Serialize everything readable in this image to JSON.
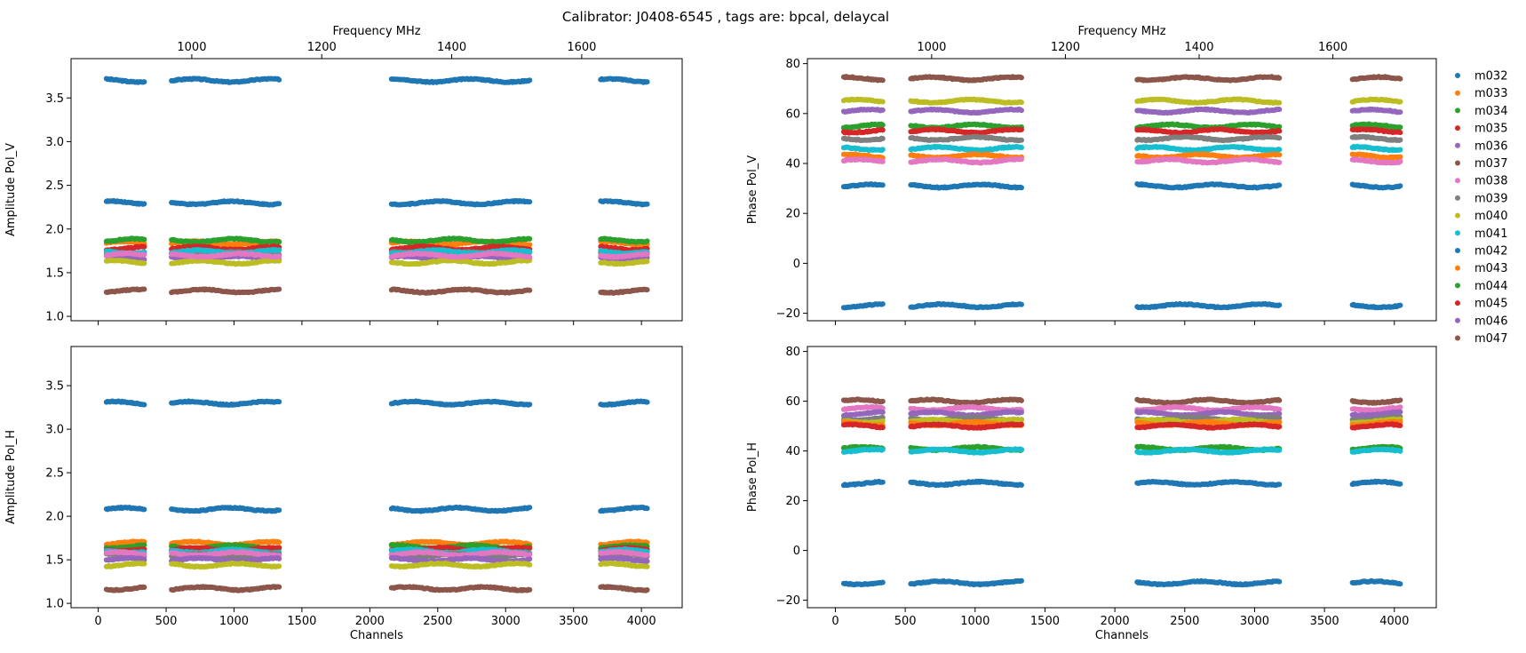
{
  "chart_data": {
    "title": "Calibrator: J0408-6545 , tags are: bpcal, delaycal",
    "type": "scatter",
    "x_label": "Channels",
    "top_axis_label": "Frequency MHz",
    "x_ticks": [
      0,
      500,
      1000,
      1500,
      2000,
      2500,
      3000,
      3500,
      4000
    ],
    "freq_ticks": [
      1000,
      1200,
      1400,
      1600
    ],
    "freq_mapping_mhz": {
      "channel_0": 856.0,
      "channel_4096": 1712.0
    },
    "xlim": [
      -200,
      4300
    ],
    "channel_segments": [
      [
        60,
        340
      ],
      [
        540,
        1340
      ],
      [
        2160,
        3180
      ],
      [
        3700,
        4050
      ]
    ],
    "legend": {
      "placement": "right-outside",
      "entries": [
        "m032",
        "m033",
        "m034",
        "m035",
        "m036",
        "m037",
        "m038",
        "m039",
        "m040",
        "m041",
        "m042",
        "m043",
        "m044",
        "m045",
        "m046",
        "m047"
      ]
    },
    "colors": [
      "#1f77b4",
      "#ff7f0e",
      "#2ca02c",
      "#d62728",
      "#9467bd",
      "#8c564b",
      "#e377c2",
      "#7f7f7f",
      "#bcbd22",
      "#17becf"
    ],
    "panels": [
      {
        "name": "amplitude-pol-v",
        "ylabel": "Amplitude Pol_V",
        "ylim": [
          0.95,
          3.95
        ],
        "yticks": [
          "1.0",
          "1.5",
          "2.0",
          "2.5",
          "3.0",
          "3.5"
        ],
        "x_tick_labels": false,
        "top_freq_axis": true,
        "series": [
          {
            "series_index": 0,
            "level": 3.7
          },
          {
            "series_index": 10,
            "level": 2.3
          },
          {
            "series_index": 1,
            "level": 1.84
          },
          {
            "series_index": 2,
            "level": 1.87
          },
          {
            "series_index": 3,
            "level": 1.78
          },
          {
            "series_index": 7,
            "level": 1.72
          },
          {
            "series_index": 9,
            "level": 1.74
          },
          {
            "series_index": 4,
            "level": 1.67
          },
          {
            "series_index": 8,
            "level": 1.62
          },
          {
            "series_index": 6,
            "level": 1.7
          },
          {
            "series_index": 5,
            "level": 1.29
          }
        ]
      },
      {
        "name": "phase-pol-v",
        "ylabel": "Phase Pol_V",
        "ylim": [
          -23,
          82
        ],
        "yticks": [
          "−20",
          "0",
          "20",
          "40",
          "60",
          "80"
        ],
        "x_tick_labels": false,
        "top_freq_axis": true,
        "series": [
          {
            "series_index": 5,
            "level": 74
          },
          {
            "series_index": 8,
            "level": 65
          },
          {
            "series_index": 4,
            "level": 61
          },
          {
            "series_index": 2,
            "level": 55
          },
          {
            "series_index": 3,
            "level": 53
          },
          {
            "series_index": 7,
            "level": 50
          },
          {
            "series_index": 9,
            "level": 46
          },
          {
            "series_index": 1,
            "level": 43
          },
          {
            "series_index": 6,
            "level": 41
          },
          {
            "series_index": 0,
            "level": 31
          },
          {
            "series_index": 10,
            "level": -17
          }
        ]
      },
      {
        "name": "amplitude-pol-h",
        "ylabel": "Amplitude Pol_H",
        "ylim": [
          0.95,
          3.95
        ],
        "yticks": [
          "1.0",
          "1.5",
          "2.0",
          "2.5",
          "3.0",
          "3.5"
        ],
        "x_tick_labels": true,
        "top_freq_axis": false,
        "series": [
          {
            "series_index": 0,
            "level": 3.3
          },
          {
            "series_index": 10,
            "level": 2.08
          },
          {
            "series_index": 1,
            "level": 1.69
          },
          {
            "series_index": 2,
            "level": 1.65
          },
          {
            "series_index": 3,
            "level": 1.62
          },
          {
            "series_index": 9,
            "level": 1.6
          },
          {
            "series_index": 7,
            "level": 1.55
          },
          {
            "series_index": 6,
            "level": 1.57
          },
          {
            "series_index": 4,
            "level": 1.5
          },
          {
            "series_index": 8,
            "level": 1.44
          },
          {
            "series_index": 5,
            "level": 1.17
          }
        ]
      },
      {
        "name": "phase-pol-h",
        "ylabel": "Phase Pol_H",
        "ylim": [
          -23,
          82
        ],
        "yticks": [
          "−20",
          "0",
          "20",
          "40",
          "60",
          "80"
        ],
        "x_tick_labels": true,
        "top_freq_axis": false,
        "series": [
          {
            "series_index": 5,
            "level": 60
          },
          {
            "series_index": 6,
            "level": 57
          },
          {
            "series_index": 4,
            "level": 55
          },
          {
            "series_index": 7,
            "level": 53
          },
          {
            "series_index": 8,
            "level": 52
          },
          {
            "series_index": 1,
            "level": 51
          },
          {
            "series_index": 3,
            "level": 50
          },
          {
            "series_index": 2,
            "level": 41
          },
          {
            "series_index": 9,
            "level": 40
          },
          {
            "series_index": 0,
            "level": 27
          },
          {
            "series_index": 10,
            "level": -13
          }
        ]
      }
    ]
  }
}
